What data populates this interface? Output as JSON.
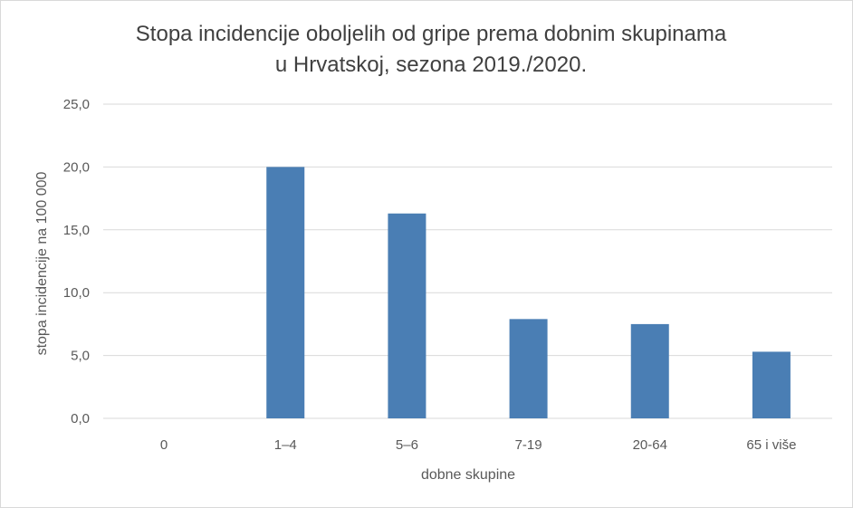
{
  "chart_data": {
    "type": "bar",
    "title": "Stopa incidencije oboljelih od gripe prema dobnim skupinama",
    "subtitle": "u Hrvatskoj, sezona 2019./2020.",
    "xlabel": "dobne skupine",
    "ylabel": "stopa incidencije na 100 000",
    "categories": [
      "0",
      "1–4",
      "5–6",
      "7-19",
      "20-64",
      "65 i više"
    ],
    "values": [
      0,
      20.0,
      16.3,
      7.9,
      7.5,
      5.3
    ],
    "ylim": [
      0,
      25
    ],
    "yticks": [
      "0,0",
      "5,0",
      "10,0",
      "15,0",
      "20,0",
      "25,0"
    ],
    "grid": true,
    "bar_color": "#4a7eb4",
    "grid_color": "#d9d9d9"
  }
}
